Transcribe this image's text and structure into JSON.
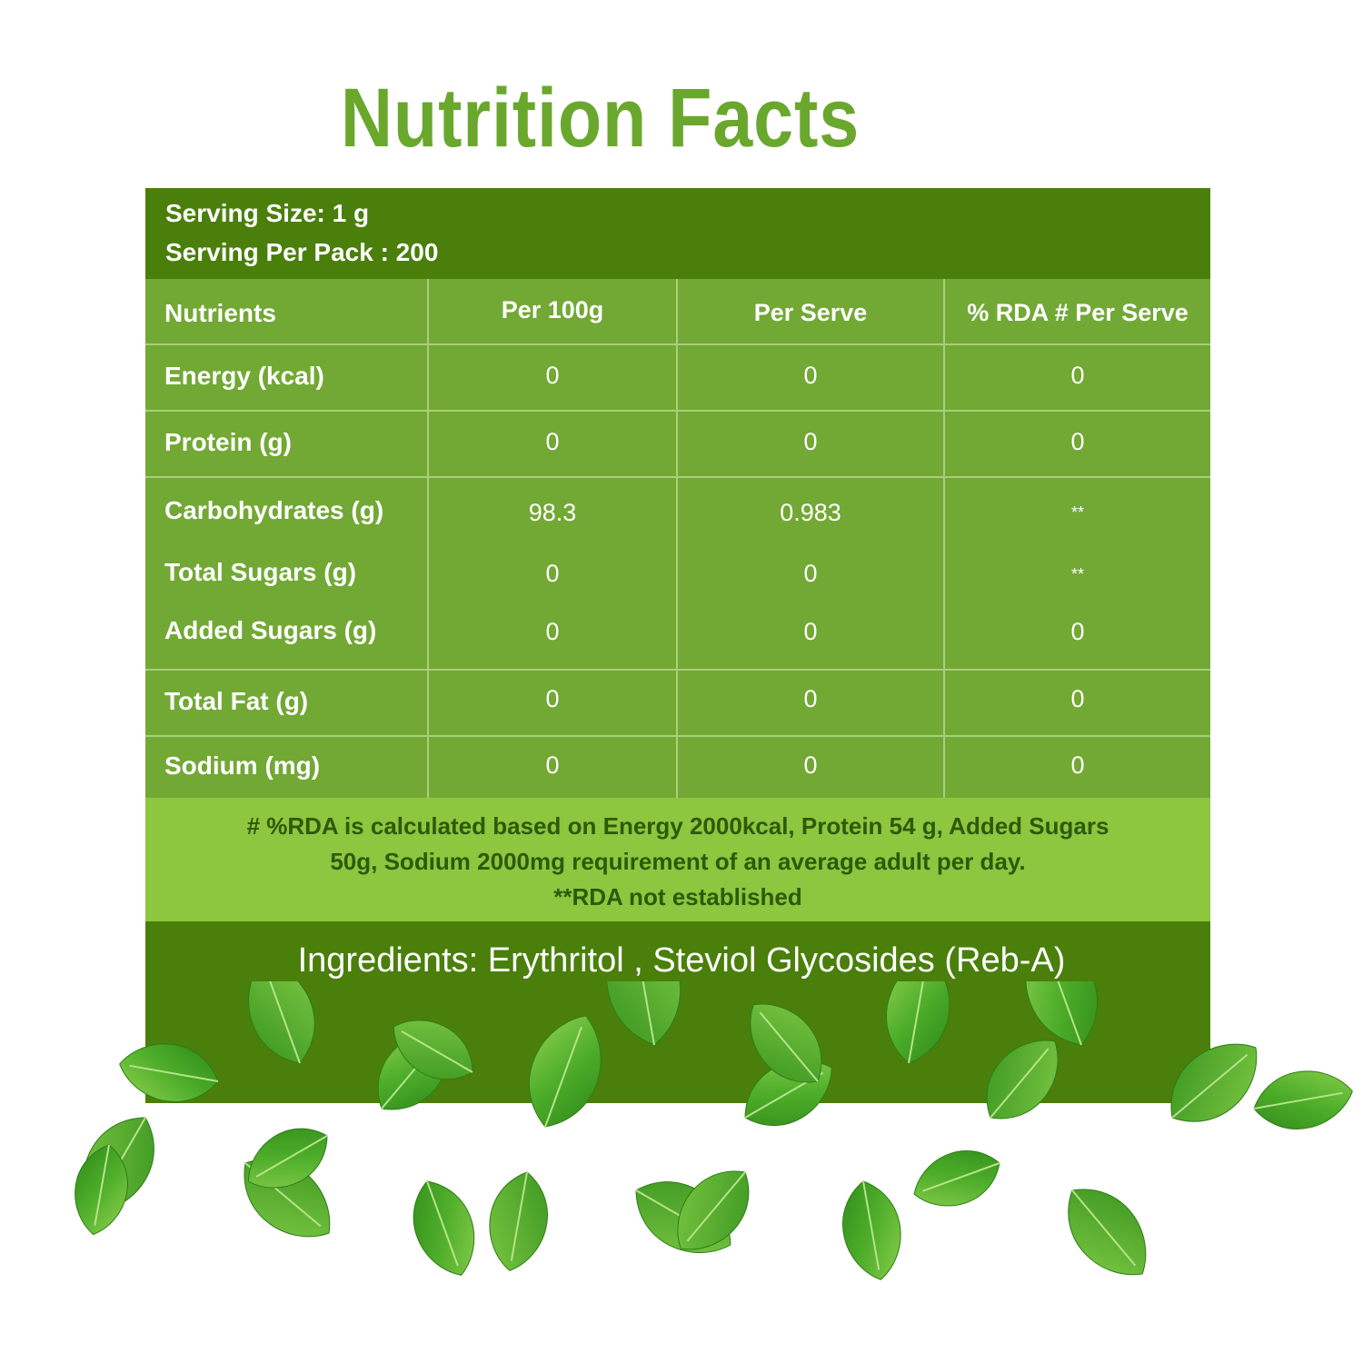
{
  "title": "Nutrition Facts",
  "serving": {
    "size": "Serving Size: 1 g",
    "per_pack": "Serving Per Pack : 200"
  },
  "table": {
    "headers": [
      "Nutrients",
      "Per 100g",
      "Per Serve",
      "% RDA # Per Serve"
    ],
    "rows": [
      {
        "label": "Energy (kcal)",
        "per100": "0",
        "serve": "0",
        "rda": "0"
      },
      {
        "label": "Protein (g)",
        "per100": "0",
        "serve": "0",
        "rda": "0"
      },
      {
        "label": "Carbohydrates (g)",
        "per100": "98.3",
        "serve": "0.983",
        "rda": "**"
      },
      {
        "label": "Total Sugars (g)",
        "per100": "0",
        "serve": "0",
        "rda": "**"
      },
      {
        "label": "Added Sugars (g)",
        "per100": "0",
        "serve": "0",
        "rda": "0"
      },
      {
        "label": "Total Fat (g)",
        "per100": "0",
        "serve": "0",
        "rda": "0"
      },
      {
        "label": "Sodium (mg)",
        "per100": "0",
        "serve": "0",
        "rda": "0"
      }
    ]
  },
  "footnote": {
    "line1": "# %RDA is calculated based on Energy 2000kcal, Protein 54 g, Added Sugars",
    "line2": "50g, Sodium 2000mg requirement of an average adult per day.",
    "line3": "**RDA not established"
  },
  "ingredients": "Ingredients: Erythritol , Steviol Glycosides (Reb-A)",
  "colors": {
    "title": "#6aa72d",
    "dark_green": "#4a7f0b",
    "table_green": "#72a834",
    "footnote_green": "#8dc63f"
  },
  "decoration": "stevia-leaves-image"
}
